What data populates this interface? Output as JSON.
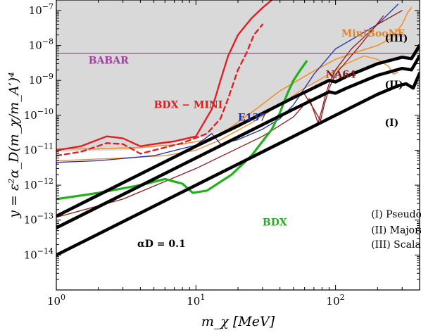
{
  "chart_data": {
    "type": "line",
    "xscale": "log",
    "yscale": "log",
    "xlim": [
      1,
      400
    ],
    "ylim": [
      1e-15,
      2e-07
    ],
    "xlabel": "m_χ [MeV]",
    "ylabel": "y = ε²α_D(m_χ/m_A′)⁴",
    "grid": false,
    "x_tick_labels": [
      {
        "base": "10",
        "exp": "0",
        "value": 1
      },
      {
        "base": "10",
        "exp": "1",
        "value": 10
      },
      {
        "base": "10",
        "exp": "2",
        "value": 100
      }
    ],
    "y_tick_labels": [
      {
        "base": "10",
        "exp": "−14",
        "value": 1e-14
      },
      {
        "base": "10",
        "exp": "−13",
        "value": 1e-13
      },
      {
        "base": "10",
        "exp": "−12",
        "value": 1e-12
      },
      {
        "base": "10",
        "exp": "−11",
        "value": 1e-11
      },
      {
        "base": "10",
        "exp": "−10",
        "value": 1e-10
      },
      {
        "base": "10",
        "exp": "−9",
        "value": 1e-09
      },
      {
        "base": "10",
        "exp": "−8",
        "value": 1e-08
      },
      {
        "base": "10",
        "exp": "−7",
        "value": 1e-07
      }
    ],
    "excluded_region": {
      "color": "#d9d9d9",
      "x": [
        1,
        3,
        5,
        8,
        12,
        20,
        40,
        60,
        80,
        100,
        200,
        300,
        400
      ],
      "y": [
        9e-12,
        1e-11,
        1.2e-11,
        1.8e-11,
        2.5e-11,
        5e-11,
        2e-10,
        6e-10,
        8e-10,
        1e-09,
        3e-09,
        5e-09,
        5e-09
      ]
    },
    "series": [
      {
        "key": "relic_I",
        "color": "#000000",
        "width": 4.5,
        "dash": "",
        "x": [
          1,
          10,
          20,
          50,
          100,
          200,
          280,
          320,
          360,
          400
        ],
        "y": [
          1e-14,
          1e-12,
          4e-12,
          2.5e-11,
          1e-10,
          4e-10,
          7e-10,
          8e-10,
          6e-10,
          1.6e-09
        ]
      },
      {
        "key": "relic_II",
        "color": "#000000",
        "width": 4.5,
        "dash": "",
        "x": [
          1,
          10,
          20,
          50,
          90,
          100,
          120,
          200,
          300,
          350,
          400
        ],
        "y": [
          6e-14,
          6e-12,
          2.4e-11,
          1.5e-10,
          4.7e-10,
          4.3e-10,
          6e-10,
          1.4e-09,
          2.2e-09,
          2e-09,
          5e-09
        ]
      },
      {
        "key": "relic_III",
        "color": "#000000",
        "width": 4.5,
        "dash": "",
        "x": [
          1,
          10,
          20,
          50,
          90,
          100,
          120,
          200,
          300,
          350,
          400
        ],
        "y": [
          1.3e-13,
          1.3e-11,
          5e-11,
          3.2e-10,
          1e-09,
          9e-10,
          1.3e-09,
          3e-09,
          4.6e-09,
          4.2e-09,
          1e-08
        ]
      },
      {
        "key": "babar",
        "color": "#a040a0",
        "width": 1.3,
        "dash": "",
        "x": [
          1,
          400
        ],
        "y": [
          6e-09,
          6e-09
        ]
      },
      {
        "key": "miniboone",
        "color": "#f0902c",
        "width": 1.6,
        "dash": "",
        "x": [
          1,
          2,
          4,
          8,
          12,
          17,
          25,
          40,
          60,
          80,
          100,
          150,
          200,
          250,
          300,
          330,
          350
        ],
        "y": [
          1.1e-11,
          1.1e-11,
          1.2e-11,
          1.5e-11,
          2e-11,
          4e-11,
          1.2e-10,
          5e-10,
          1.3e-09,
          2.5e-09,
          4e-09,
          7e-09,
          1e-08,
          1.6e-08,
          4e-08,
          9e-08,
          1.2e-07
        ]
      },
      {
        "key": "miniboone_b",
        "color": "#f0902c",
        "width": 1.4,
        "dash": "",
        "x": [
          1,
          3,
          6,
          10,
          15,
          25,
          40,
          60,
          90,
          120,
          160,
          200,
          240,
          260,
          280
        ],
        "y": [
          5e-12,
          6e-12,
          7e-12,
          1e-11,
          2e-11,
          6e-11,
          2e-10,
          6e-10,
          1.5e-09,
          3e-09,
          5e-09,
          4e-09,
          2.5e-09,
          1.5e-09,
          1.7e-09
        ]
      },
      {
        "key": "e137",
        "color": "#1f2fb0",
        "width": 1.3,
        "dash": "",
        "x": [
          1,
          2,
          5,
          10,
          13,
          15,
          20,
          30,
          40,
          50,
          70,
          100,
          200,
          280
        ],
        "y": [
          4.5e-12,
          5e-12,
          7e-12,
          1.4e-11,
          3e-11,
          1.5e-11,
          2e-11,
          4e-11,
          8e-11,
          2e-10,
          1.5e-09,
          8e-09,
          4e-08,
          1.5e-07
        ]
      },
      {
        "key": "na64",
        "color": "#8b1a1a",
        "width": 1.3,
        "dash": "",
        "x": [
          1,
          3,
          10,
          30,
          50,
          65,
          75,
          80,
          85,
          90,
          100,
          130,
          200,
          300
        ],
        "y": [
          1.2e-13,
          4e-13,
          3e-12,
          2.5e-11,
          9e-11,
          3e-10,
          6e-11,
          1.5e-10,
          4e-10,
          8e-10,
          2e-09,
          8e-09,
          4e-08,
          1e-07
        ]
      },
      {
        "key": "na64_b",
        "color": "#8b1a1a",
        "width": 1.3,
        "dash": "",
        "x": [
          60,
          70,
          78,
          83,
          90,
          100,
          150,
          220
        ],
        "y": [
          4e-10,
          1.5e-10,
          7e-11,
          2e-10,
          6e-10,
          1.5e-09,
          1e-08,
          7e-08
        ]
      },
      {
        "key": "bdx",
        "color": "#22b01c",
        "width": 3.2,
        "dash": "",
        "x": [
          1,
          2,
          4,
          6,
          8,
          9.5,
          12,
          18,
          25,
          35,
          40,
          45,
          50,
          56,
          62
        ],
        "y": [
          4e-13,
          6e-13,
          1e-12,
          1.5e-12,
          1.1e-12,
          6e-13,
          7e-13,
          2e-12,
          7e-12,
          4e-11,
          1.2e-10,
          4e-10,
          1e-09,
          2e-09,
          3.5e-09
        ]
      },
      {
        "key": "bdx_mini",
        "color": "#e41a1c",
        "width": 2.3,
        "dash": "",
        "x": [
          1,
          1.5,
          2.3,
          3,
          4,
          5,
          7,
          10,
          13,
          15,
          17,
          20,
          25,
          30,
          35
        ],
        "y": [
          1e-11,
          1.3e-11,
          2.5e-11,
          2.2e-11,
          1.3e-11,
          1.5e-11,
          1.8e-11,
          2.5e-11,
          1.5e-10,
          1e-09,
          5e-09,
          2e-08,
          6e-08,
          1.2e-07,
          2e-07
        ]
      },
      {
        "key": "bdx_mini_dashed",
        "color": "#e41a1c",
        "width": 2.3,
        "dash": "7,5",
        "x": [
          1,
          1.5,
          2.3,
          3,
          4,
          5,
          8,
          12,
          15,
          17,
          20,
          23,
          26,
          30
        ],
        "y": [
          7e-12,
          9e-12,
          1.6e-11,
          1.5e-11,
          8e-12,
          1e-11,
          1.6e-11,
          3e-11,
          8e-11,
          3e-10,
          2e-09,
          6e-09,
          2e-08,
          4e-08
        ]
      }
    ],
    "annotations": [
      {
        "key": "miniboone",
        "text": "MiniBooNE",
        "color": "#e8821e",
        "x": 110,
        "y": 1.8e-08,
        "size": 15,
        "weight": "bold",
        "italic": false
      },
      {
        "key": "babar",
        "text": "BABAR",
        "color": "#a040a0",
        "x": 1.7,
        "y": 3e-09,
        "size": 15,
        "weight": "bold",
        "italic": false
      },
      {
        "key": "na64",
        "text": "NA64",
        "color": "#8b1a1a",
        "x": 85,
        "y": 1.2e-09,
        "size": 15,
        "weight": "bold",
        "italic": false
      },
      {
        "key": "bdx_mini",
        "text": "BDX − MINI",
        "color": "#e41a1c",
        "x": 5,
        "y": 1.6e-10,
        "size": 18,
        "weight": "bold",
        "italic": false
      },
      {
        "key": "e137",
        "text": "E137",
        "color": "#1f2fb0",
        "x": 20,
        "y": 7e-11,
        "size": 14,
        "weight": "bold",
        "italic": false
      },
      {
        "key": "relic_III_label",
        "text": "(III)",
        "color": "#000000",
        "x": 225,
        "y": 1.3e-08,
        "size": 16,
        "weight": "bold",
        "italic": false
      },
      {
        "key": "relic_II_label",
        "text": "(II)",
        "color": "#000000",
        "x": 225,
        "y": 6e-10,
        "size": 16,
        "weight": "bold",
        "italic": false
      },
      {
        "key": "relic_I_label",
        "text": "(I)",
        "color": "#000000",
        "x": 225,
        "y": 5e-11,
        "size": 16,
        "weight": "bold",
        "italic": false
      },
      {
        "key": "bdx",
        "text": "BDX",
        "color": "#22b01c",
        "x": 30,
        "y": 7e-14,
        "size": 18,
        "weight": "bold",
        "italic": false
      },
      {
        "key": "alpha_d",
        "text": "αD = 0.1",
        "color": "#000000",
        "x": 3.8,
        "y": 1.7e-14,
        "size": 16,
        "weight": "bold",
        "italic": false
      },
      {
        "key": "legend_I",
        "text": "(I) Pseudo-Dirac Fermion Relic",
        "color": "#000000",
        "x": 180,
        "y": 1.2e-13,
        "size": 12,
        "weight": "normal",
        "italic": false
      },
      {
        "key": "legend_II",
        "text": "(II) Majorana Relic",
        "color": "#000000",
        "x": 180,
        "y": 4.2e-14,
        "size": 12,
        "weight": "normal",
        "italic": false
      },
      {
        "key": "legend_III",
        "text": "(III) Scalar Relic",
        "color": "#000000",
        "x": 180,
        "y": 1.6e-14,
        "size": 12,
        "weight": "normal",
        "italic": false
      }
    ]
  }
}
